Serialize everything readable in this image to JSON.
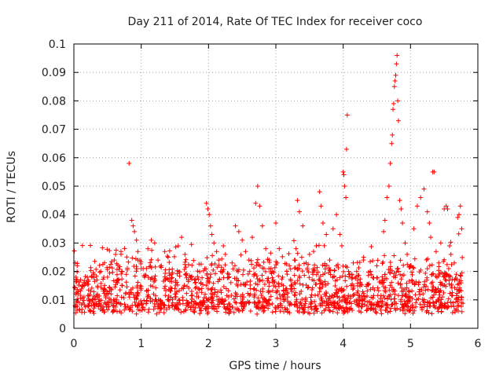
{
  "chart_data": {
    "type": "scatter",
    "title": "Day 211 of 2014, Rate Of TEC Index for receiver coco",
    "xlabel": "GPS time / hours",
    "ylabel": "ROTI / TECUs",
    "xlim": [
      0,
      6
    ],
    "ylim": [
      0,
      0.1
    ],
    "x_ticks": [
      0,
      1,
      2,
      3,
      4,
      5,
      6
    ],
    "x_tick_labels": [
      "0",
      "1",
      "2",
      "3",
      "4",
      "5",
      "6"
    ],
    "y_ticks": [
      0,
      0.01,
      0.02,
      0.03,
      0.04,
      0.05,
      0.06,
      0.07,
      0.08,
      0.09,
      0.1
    ],
    "y_tick_labels": [
      "0",
      "0.01",
      "0.02",
      "0.03",
      "0.04",
      "0.05",
      "0.06",
      "0.07",
      "0.08",
      "0.09",
      "0.1"
    ],
    "grid": true,
    "marker": "+",
    "marker_color": "#ff0000",
    "series": [
      {
        "name": "ROTI",
        "points": [
          [
            0.02,
            0.023
          ],
          [
            0.05,
            0.022
          ],
          [
            0.03,
            0.012
          ],
          [
            0.08,
            0.009
          ],
          [
            0.12,
            0.015
          ],
          [
            0.15,
            0.011
          ],
          [
            0.2,
            0.018
          ],
          [
            0.25,
            0.013
          ],
          [
            0.3,
            0.019
          ],
          [
            0.35,
            0.012
          ],
          [
            0.4,
            0.02
          ],
          [
            0.45,
            0.014
          ],
          [
            0.5,
            0.018
          ],
          [
            0.55,
            0.01
          ],
          [
            0.6,
            0.024
          ],
          [
            0.62,
            0.026
          ],
          [
            0.65,
            0.016
          ],
          [
            0.7,
            0.027
          ],
          [
            0.72,
            0.015
          ],
          [
            0.78,
            0.019
          ],
          [
            0.82,
            0.058
          ],
          [
            0.86,
            0.038
          ],
          [
            0.88,
            0.036
          ],
          [
            0.9,
            0.034
          ],
          [
            0.93,
            0.031
          ],
          [
            0.95,
            0.027
          ],
          [
            0.98,
            0.024
          ],
          [
            1.0,
            0.021
          ],
          [
            1.05,
            0.018
          ],
          [
            1.1,
            0.028
          ],
          [
            1.15,
            0.031
          ],
          [
            1.2,
            0.03
          ],
          [
            1.25,
            0.024
          ],
          [
            1.3,
            0.022
          ],
          [
            1.35,
            0.027
          ],
          [
            1.4,
            0.025
          ],
          [
            1.45,
            0.019
          ],
          [
            1.5,
            0.014
          ],
          [
            1.55,
            0.029
          ],
          [
            1.6,
            0.032
          ],
          [
            1.65,
            0.026
          ],
          [
            1.7,
            0.017
          ],
          [
            1.75,
            0.013
          ],
          [
            1.8,
            0.016
          ],
          [
            1.85,
            0.011
          ],
          [
            1.9,
            0.014
          ],
          [
            1.95,
            0.012
          ],
          [
            1.97,
            0.044
          ],
          [
            1.99,
            0.042
          ],
          [
            2.01,
            0.04
          ],
          [
            2.03,
            0.036
          ],
          [
            2.05,
            0.033
          ],
          [
            2.08,
            0.03
          ],
          [
            2.12,
            0.027
          ],
          [
            2.15,
            0.024
          ],
          [
            2.18,
            0.02
          ],
          [
            2.22,
            0.029
          ],
          [
            2.25,
            0.026
          ],
          [
            2.3,
            0.019
          ],
          [
            2.35,
            0.023
          ],
          [
            2.4,
            0.036
          ],
          [
            2.45,
            0.034
          ],
          [
            2.5,
            0.031
          ],
          [
            2.55,
            0.027
          ],
          [
            2.6,
            0.024
          ],
          [
            2.65,
            0.032
          ],
          [
            2.7,
            0.044
          ],
          [
            2.73,
            0.05
          ],
          [
            2.76,
            0.043
          ],
          [
            2.8,
            0.036
          ],
          [
            2.85,
            0.028
          ],
          [
            2.9,
            0.024
          ],
          [
            2.95,
            0.02
          ],
          [
            3.0,
            0.037
          ],
          [
            3.05,
            0.028
          ],
          [
            3.1,
            0.018
          ],
          [
            3.2,
            0.022
          ],
          [
            3.3,
            0.028
          ],
          [
            3.32,
            0.045
          ],
          [
            3.35,
            0.041
          ],
          [
            3.4,
            0.036
          ],
          [
            3.45,
            0.023
          ],
          [
            3.5,
            0.026
          ],
          [
            3.55,
            0.019
          ],
          [
            3.6,
            0.029
          ],
          [
            3.65,
            0.048
          ],
          [
            3.67,
            0.043
          ],
          [
            3.7,
            0.037
          ],
          [
            3.75,
            0.033
          ],
          [
            3.8,
            0.024
          ],
          [
            3.85,
            0.035
          ],
          [
            3.9,
            0.04
          ],
          [
            3.95,
            0.033
          ],
          [
            3.98,
            0.029
          ],
          [
            4.0,
            0.055
          ],
          [
            4.01,
            0.054
          ],
          [
            4.02,
            0.05
          ],
          [
            4.04,
            0.046
          ],
          [
            4.05,
            0.063
          ],
          [
            4.06,
            0.075
          ],
          [
            4.08,
            0.02
          ],
          [
            4.1,
            0.019
          ],
          [
            4.15,
            0.023
          ],
          [
            4.2,
            0.02
          ],
          [
            4.3,
            0.024
          ],
          [
            4.4,
            0.02
          ],
          [
            4.5,
            0.022
          ],
          [
            4.6,
            0.034
          ],
          [
            4.62,
            0.038
          ],
          [
            4.65,
            0.046
          ],
          [
            4.68,
            0.05
          ],
          [
            4.7,
            0.058
          ],
          [
            4.72,
            0.065
          ],
          [
            4.73,
            0.068
          ],
          [
            4.74,
            0.077
          ],
          [
            4.75,
            0.079
          ],
          [
            4.76,
            0.085
          ],
          [
            4.77,
            0.087
          ],
          [
            4.78,
            0.089
          ],
          [
            4.79,
            0.093
          ],
          [
            4.8,
            0.096
          ],
          [
            4.81,
            0.08
          ],
          [
            4.82,
            0.073
          ],
          [
            4.84,
            0.045
          ],
          [
            4.86,
            0.042
          ],
          [
            4.88,
            0.037
          ],
          [
            4.92,
            0.03
          ],
          [
            4.95,
            0.026
          ],
          [
            5.0,
            0.022
          ],
          [
            5.05,
            0.035
          ],
          [
            5.1,
            0.043
          ],
          [
            5.15,
            0.046
          ],
          [
            5.2,
            0.049
          ],
          [
            5.25,
            0.041
          ],
          [
            5.28,
            0.037
          ],
          [
            5.3,
            0.032
          ],
          [
            5.33,
            0.055
          ],
          [
            5.35,
            0.055
          ],
          [
            5.38,
            0.027
          ],
          [
            5.42,
            0.023
          ],
          [
            5.45,
            0.03
          ],
          [
            5.5,
            0.042
          ],
          [
            5.53,
            0.043
          ],
          [
            5.55,
            0.042
          ],
          [
            5.58,
            0.029
          ],
          [
            5.6,
            0.026
          ],
          [
            5.65,
            0.023
          ],
          [
            5.68,
            0.019
          ],
          [
            5.7,
            0.039
          ],
          [
            5.72,
            0.04
          ],
          [
            5.74,
            0.043
          ],
          [
            5.76,
            0.035
          ],
          [
            5.75,
            0.016
          ]
        ]
      }
    ]
  }
}
